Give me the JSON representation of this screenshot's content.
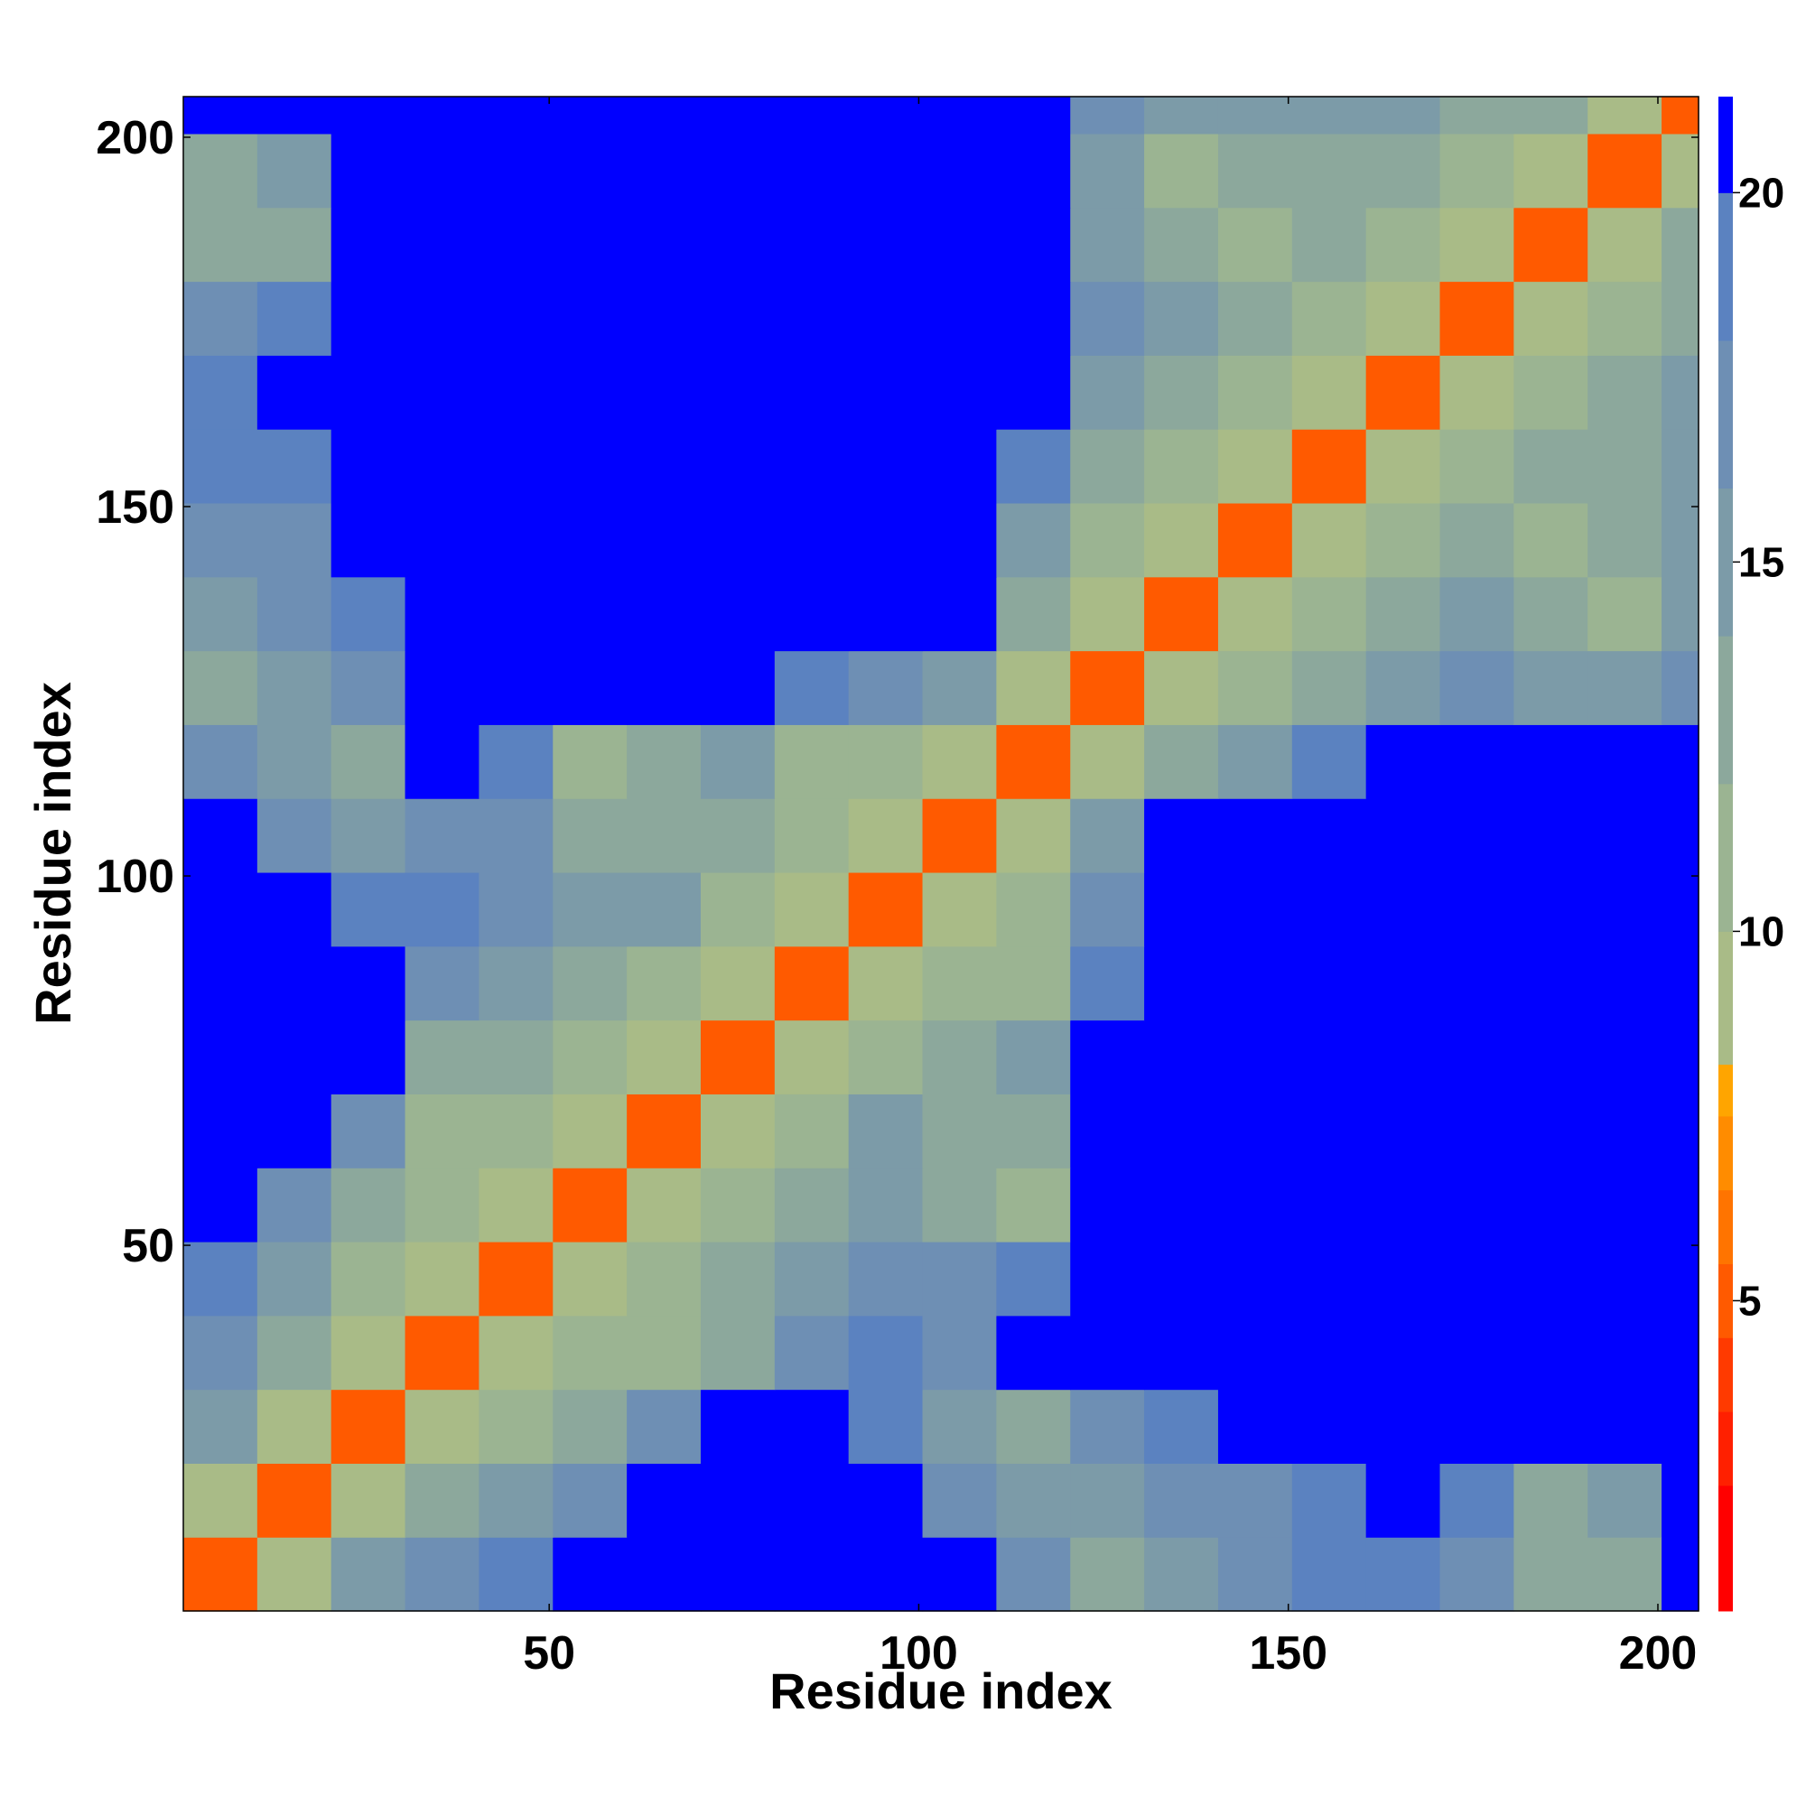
{
  "chart_data": {
    "type": "heatmap",
    "xlabel": "Residue index",
    "ylabel": "Residue index",
    "xlim": [
      0.5,
      205.5
    ],
    "ylim": [
      0.5,
      205.5
    ],
    "xticks": [
      50,
      100,
      150,
      200
    ],
    "yticks": [
      50,
      100,
      150,
      200
    ],
    "x_bins": [
      0.5,
      10.5,
      20.5,
      30.5,
      40.5,
      50.5,
      60.5,
      70.5,
      80.5,
      90.5,
      100.5,
      110.5,
      120.5,
      130.5,
      140.5,
      150.5,
      160.5,
      170.5,
      180.5,
      190.5,
      200.5,
      205.5
    ],
    "y_bins": [
      0.5,
      10.5,
      20.5,
      30.5,
      40.5,
      50.5,
      60.5,
      70.5,
      80.5,
      90.5,
      100.5,
      110.5,
      120.5,
      130.5,
      140.5,
      150.5,
      160.5,
      170.5,
      180.5,
      190.5,
      200.5,
      205.5
    ],
    "z": [
      [
        5,
        9,
        15,
        18,
        19,
        21,
        21,
        21,
        21,
        21,
        21,
        18,
        14,
        15,
        17,
        19,
        20,
        17,
        13,
        14,
        21
      ],
      [
        9,
        5,
        9,
        13,
        15,
        17,
        21,
        21,
        21,
        21,
        18,
        15,
        16,
        17,
        17,
        20,
        21,
        20,
        14,
        16,
        21
      ],
      [
        15,
        9,
        5,
        9,
        11,
        13,
        18,
        21,
        21,
        20,
        16,
        13,
        17,
        20,
        21,
        21,
        21,
        21,
        21,
        21,
        21
      ],
      [
        18,
        13,
        9,
        5,
        9,
        11,
        12,
        14,
        18,
        20,
        17,
        21,
        21,
        21,
        21,
        21,
        21,
        21,
        21,
        21,
        21
      ],
      [
        19,
        15,
        11,
        9,
        5,
        9,
        12,
        13,
        16,
        18,
        17,
        19,
        21,
        21,
        21,
        21,
        21,
        21,
        21,
        21,
        21
      ],
      [
        21,
        17,
        13,
        11,
        9,
        5,
        9,
        11,
        13,
        16,
        14,
        12,
        21,
        21,
        21,
        21,
        21,
        21,
        21,
        21,
        21
      ],
      [
        21,
        21,
        18,
        12,
        12,
        9,
        5,
        9,
        12,
        15,
        14,
        14,
        21,
        21,
        21,
        21,
        21,
        21,
        21,
        21,
        21
      ],
      [
        21,
        21,
        21,
        14,
        13,
        11,
        9,
        5,
        9,
        12,
        13,
        15,
        21,
        21,
        21,
        21,
        21,
        21,
        21,
        21,
        21
      ],
      [
        21,
        21,
        21,
        18,
        16,
        13,
        12,
        9,
        5,
        9,
        11,
        12,
        20,
        21,
        21,
        21,
        21,
        21,
        21,
        21,
        21
      ],
      [
        21,
        21,
        20,
        20,
        18,
        16,
        15,
        12,
        9,
        5,
        9,
        11,
        18,
        21,
        21,
        21,
        21,
        21,
        21,
        21,
        21
      ],
      [
        21,
        18,
        16,
        17,
        17,
        14,
        14,
        13,
        11,
        9,
        5,
        9,
        15,
        21,
        21,
        21,
        21,
        21,
        21,
        21,
        21
      ],
      [
        18,
        15,
        13,
        21,
        19,
        12,
        14,
        15,
        12,
        11,
        9,
        5,
        9,
        14,
        16,
        19,
        21,
        21,
        21,
        21,
        21
      ],
      [
        14,
        16,
        17,
        21,
        21,
        21,
        21,
        21,
        20,
        18,
        15,
        9,
        5,
        9,
        12,
        14,
        16,
        17,
        16,
        16,
        17
      ],
      [
        15,
        17,
        20,
        21,
        21,
        21,
        21,
        21,
        21,
        21,
        21,
        14,
        9,
        5,
        9,
        11,
        14,
        15,
        14,
        12,
        15
      ],
      [
        17,
        17,
        21,
        21,
        21,
        21,
        21,
        21,
        21,
        21,
        21,
        16,
        12,
        9,
        5,
        9,
        12,
        13,
        11,
        13,
        16
      ],
      [
        19,
        20,
        21,
        21,
        21,
        21,
        21,
        21,
        21,
        21,
        21,
        19,
        14,
        11,
        9,
        5,
        9,
        11,
        13,
        14,
        15
      ],
      [
        20,
        21,
        21,
        21,
        21,
        21,
        21,
        21,
        21,
        21,
        21,
        21,
        16,
        14,
        12,
        9,
        5,
        9,
        11,
        13,
        15
      ],
      [
        17,
        20,
        21,
        21,
        21,
        21,
        21,
        21,
        21,
        21,
        21,
        21,
        17,
        15,
        13,
        11,
        9,
        5,
        9,
        12,
        14
      ],
      [
        13,
        14,
        21,
        21,
        21,
        21,
        21,
        21,
        21,
        21,
        21,
        21,
        16,
        14,
        11,
        13,
        11,
        9,
        5,
        9,
        13
      ],
      [
        14,
        16,
        21,
        21,
        21,
        21,
        21,
        21,
        21,
        21,
        21,
        21,
        16,
        12,
        13,
        14,
        13,
        12,
        9,
        5,
        9
      ],
      [
        21,
        21,
        21,
        21,
        21,
        21,
        21,
        21,
        21,
        21,
        21,
        21,
        17,
        15,
        16,
        15,
        15,
        14,
        13,
        9,
        5
      ]
    ],
    "colorbar": {
      "lim": [
        0.8,
        21.3
      ],
      "ticks": [
        5,
        10,
        15,
        20
      ],
      "levels": [
        0.8,
        2.5,
        3.5,
        4.5,
        5.5,
        6.5,
        7.5,
        8.2,
        10,
        12,
        14,
        16,
        18,
        20,
        21.3
      ],
      "colors": [
        "#ff0000",
        "#ff2000",
        "#ff3a00",
        "#ff5a00",
        "#ff7400",
        "#ff8c00",
        "#ffa500",
        "#a9bb87",
        "#9bb492",
        "#8ca89c",
        "#7c9ba8",
        "#6e8fb4",
        "#5b82c0",
        "#0000ff"
      ]
    }
  }
}
